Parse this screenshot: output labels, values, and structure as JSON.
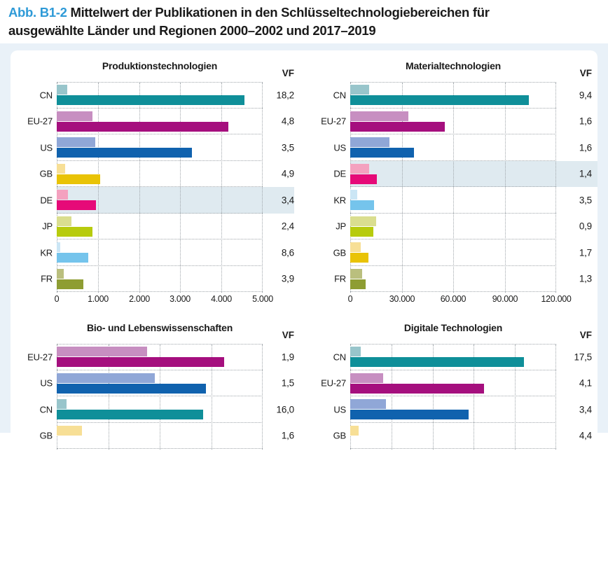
{
  "figure": {
    "label": "Abb. B1-2",
    "title": "Mittelwert der Publikationen in den Schlüsseltechnologiebereichen für ausgewählte Länder und Regionen 2000–2002 und 2017–2019",
    "title_line1": "Mittelwert der Publikationen in den Schlüsseltechnologiebereichen für",
    "title_line2": "ausgewählte Länder und Regionen 2000–2002 und 2017–2019",
    "vf_header": "VF"
  },
  "colors": {
    "figure_bg": "#e9f1f8",
    "card_bg": "#ffffff",
    "abb_label_blue": "#2e9ad7",
    "text": "#1a1a1a",
    "gridline": "#a0a6ab",
    "highlight_row": "#dfeaf0",
    "countries": {
      "CN": {
        "light": "#98c5cb",
        "dark": "#0f8f99"
      },
      "EU-27": {
        "light": "#c78fc1",
        "dark": "#a50f7e"
      },
      "US": {
        "light": "#90a7d7",
        "dark": "#1062ae"
      },
      "GB": {
        "light": "#f7df96",
        "dark": "#e9c306"
      },
      "DE": {
        "light": "#f4a1bf",
        "dark": "#e60a78"
      },
      "JP": {
        "light": "#dade8f",
        "dark": "#b7cb0d"
      },
      "KR": {
        "light": "#cbe6f5",
        "dark": "#75c4ec"
      },
      "FR": {
        "light": "#babf7e",
        "dark": "#8e9d33"
      }
    }
  },
  "chart_data": [
    {
      "type": "bar",
      "orientation": "horizontal",
      "title": "Produktionstechnologien",
      "series": [
        "2000–2002",
        "2017–2019"
      ],
      "axis_max": 5000,
      "ticks": [
        "0",
        "1.000",
        "2.000",
        "3.000",
        "4.000",
        "5.000"
      ],
      "gridlines": 6,
      "axis_cut_off": false,
      "rows": [
        {
          "label": "CN",
          "light": 250,
          "dark": 4550,
          "vf": "18,2",
          "highlight": false
        },
        {
          "label": "EU-27",
          "light": 870,
          "dark": 4160,
          "vf": "4,8",
          "highlight": false
        },
        {
          "label": "US",
          "light": 940,
          "dark": 3280,
          "vf": "3,5",
          "highlight": false
        },
        {
          "label": "GB",
          "light": 210,
          "dark": 1060,
          "vf": "4,9",
          "highlight": false
        },
        {
          "label": "DE",
          "light": 280,
          "dark": 960,
          "vf": "3,4",
          "highlight": true
        },
        {
          "label": "JP",
          "light": 360,
          "dark": 860,
          "vf": "2,4",
          "highlight": false
        },
        {
          "label": "KR",
          "light": 90,
          "dark": 770,
          "vf": "8,6",
          "highlight": false
        },
        {
          "label": "FR",
          "light": 170,
          "dark": 640,
          "vf": "3,9",
          "highlight": false
        }
      ]
    },
    {
      "type": "bar",
      "orientation": "horizontal",
      "title": "Materialtechnologien",
      "series": [
        "2000–2002",
        "2017–2019"
      ],
      "axis_max": 120000,
      "ticks": [
        "0",
        "30.000",
        "60.000",
        "90.000",
        "120.000"
      ],
      "gridlines": 5,
      "axis_cut_off": false,
      "rows": [
        {
          "label": "CN",
          "light": 11000,
          "dark": 104000,
          "vf": "9,4",
          "highlight": false
        },
        {
          "label": "EU-27",
          "light": 34000,
          "dark": 55000,
          "vf": "1,6",
          "highlight": false
        },
        {
          "label": "US",
          "light": 23000,
          "dark": 37000,
          "vf": "1,6",
          "highlight": false
        },
        {
          "label": "DE",
          "light": 11200,
          "dark": 15400,
          "vf": "1,4",
          "highlight": true
        },
        {
          "label": "KR",
          "light": 4000,
          "dark": 14000,
          "vf": "3,5",
          "highlight": false
        },
        {
          "label": "JP",
          "light": 15000,
          "dark": 13500,
          "vf": "0,9",
          "highlight": false
        },
        {
          "label": "GB",
          "light": 6000,
          "dark": 10500,
          "vf": "1,7",
          "highlight": false
        },
        {
          "label": "FR",
          "light": 6800,
          "dark": 9000,
          "vf": "1,3",
          "highlight": false
        }
      ]
    },
    {
      "type": "bar",
      "orientation": "horizontal",
      "title": "Bio- und Lebenswissenschaften",
      "series": [
        "2000–2002",
        "2017–2019"
      ],
      "axis_max": 4,
      "ticks": [],
      "gridlines": 5,
      "axis_cut_off": true,
      "value_unit": "grid-units (axis labels cut off at image bottom)",
      "rows": [
        {
          "label": "EU-27",
          "light": 1.75,
          "dark": 3.25,
          "vf": "1,9",
          "highlight": false
        },
        {
          "label": "US",
          "light": 1.9,
          "dark": 2.9,
          "vf": "1,5",
          "highlight": false
        },
        {
          "label": "CN",
          "light": 0.19,
          "dark": 2.85,
          "vf": "16,0",
          "highlight": false
        },
        {
          "label": "GB",
          "light": 0.49,
          "dark": null,
          "vf": "1,6",
          "highlight": false
        }
      ]
    },
    {
      "type": "bar",
      "orientation": "horizontal",
      "title": "Digitale Technologien",
      "series": [
        "2000–2002",
        "2017–2019"
      ],
      "axis_max": 5,
      "ticks": [],
      "gridlines": 6,
      "axis_cut_off": true,
      "value_unit": "grid-units (axis labels cut off at image bottom)",
      "rows": [
        {
          "label": "CN",
          "light": 0.26,
          "dark": 4.22,
          "vf": "17,5",
          "highlight": false
        },
        {
          "label": "EU-27",
          "light": 0.8,
          "dark": 3.25,
          "vf": "4,1",
          "highlight": false
        },
        {
          "label": "US",
          "light": 0.86,
          "dark": 2.87,
          "vf": "3,4",
          "highlight": false
        },
        {
          "label": "GB",
          "light": 0.2,
          "dark": null,
          "vf": "4,4",
          "highlight": false
        }
      ]
    }
  ]
}
